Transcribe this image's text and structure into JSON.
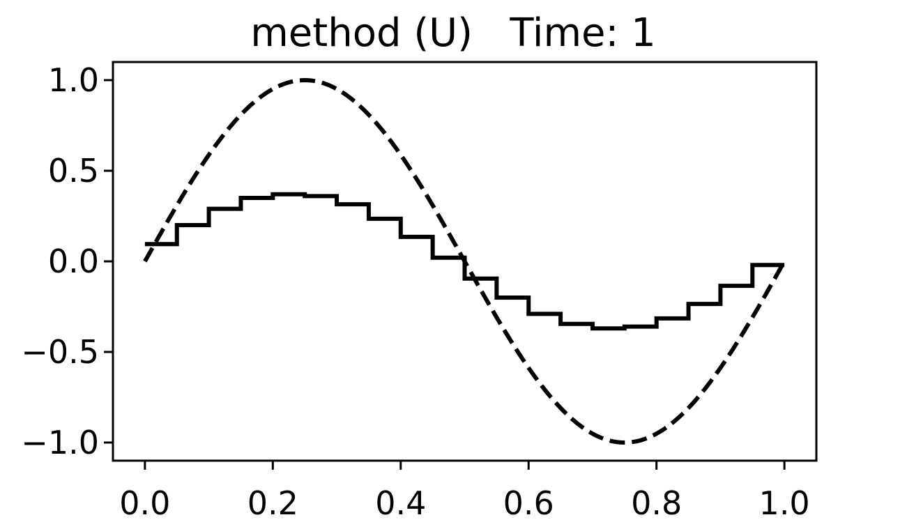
{
  "chart_data": {
    "type": "line",
    "title": "method (U)   Time: 1",
    "xlabel": "",
    "ylabel": "",
    "xlim": [
      -0.05,
      1.05
    ],
    "ylim": [
      -1.1,
      1.1
    ],
    "grid": false,
    "legend": "none",
    "x_ticks": [
      0.0,
      0.2,
      0.4,
      0.6,
      0.8,
      1.0
    ],
    "x_tick_labels": [
      "0.0",
      "0.2",
      "0.4",
      "0.6",
      "0.8",
      "1.0"
    ],
    "y_ticks": [
      1.0,
      0.5,
      0.0,
      -0.5,
      -1.0
    ],
    "y_tick_labels": [
      "1.0",
      "0.5",
      "0.0",
      "−0.5",
      "−1.0"
    ],
    "series": [
      {
        "style": "step-solid",
        "color": "#000000",
        "cell_edges": [
          0.0,
          0.05,
          0.1,
          0.15,
          0.2,
          0.25,
          0.3,
          0.35,
          0.4,
          0.45,
          0.5,
          0.55,
          0.6,
          0.65,
          0.7,
          0.75,
          0.8,
          0.85,
          0.9,
          0.95,
          1.0
        ],
        "values": [
          0.095,
          0.2,
          0.29,
          0.35,
          0.37,
          0.36,
          0.315,
          0.235,
          0.135,
          0.02,
          -0.095,
          -0.2,
          -0.29,
          -0.345,
          -0.37,
          -0.36,
          -0.315,
          -0.235,
          -0.135,
          -0.02
        ]
      },
      {
        "style": "dashed",
        "color": "#000000",
        "function": "sin(2*pi*x)",
        "x_range": [
          0.0,
          1.0
        ]
      }
    ]
  }
}
